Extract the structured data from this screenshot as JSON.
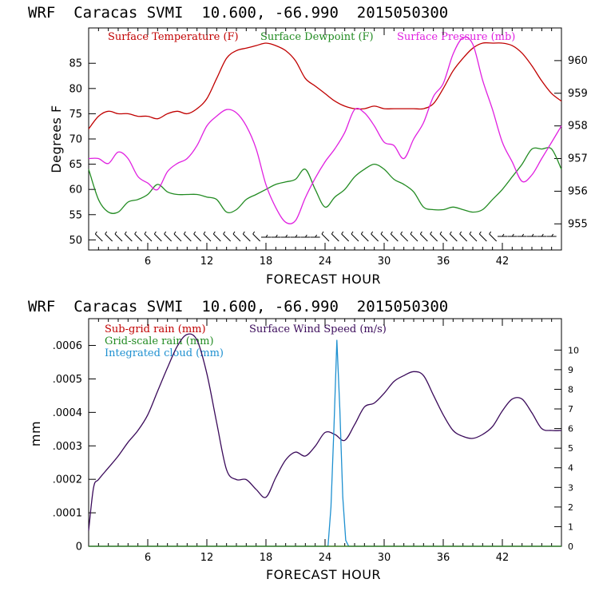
{
  "colors": {
    "temperature": "#c00000",
    "dewpoint": "#228b22",
    "pressure": "#e020e0",
    "subgrid_rain": "#c00000",
    "gridscale_rain": "#228b22",
    "cloud": "#1e90d0",
    "wind_speed": "#3a0a5a"
  },
  "chart_data": [
    {
      "type": "line",
      "header": "WRF  Caracas SVMI  10.600, -66.990  2015050300",
      "xlabel": "FORECAST HOUR",
      "ylabel": "Degrees F",
      "xlim": [
        0,
        48
      ],
      "x_ticks": [
        6,
        12,
        18,
        24,
        30,
        36,
        42
      ],
      "ylim_left": [
        48,
        92
      ],
      "y_ticks_left": [
        50,
        55,
        60,
        65,
        70,
        75,
        80,
        85
      ],
      "ylim_right": [
        954.2,
        961
      ],
      "y_ticks_right": [
        955,
        956,
        957,
        958,
        959,
        960
      ],
      "legend": [
        "Surface Temperature (F)",
        "Surface Dewpoint (F)",
        "Surface Pressure (mb)"
      ],
      "series": [
        {
          "name": "Surface Temperature (F)",
          "axis": "left",
          "x": [
            0,
            1,
            2,
            3,
            4,
            5,
            6,
            7,
            8,
            9,
            10,
            11,
            12,
            13,
            14,
            15,
            16,
            17,
            18,
            19,
            20,
            21,
            22,
            23,
            24,
            25,
            26,
            27,
            28,
            29,
            30,
            31,
            32,
            33,
            34,
            35,
            36,
            37,
            38,
            39,
            40,
            41,
            42,
            43,
            44,
            45,
            46,
            47,
            48
          ],
          "values": [
            72,
            74.5,
            75.5,
            75,
            75,
            74.5,
            74.5,
            74,
            75,
            75.5,
            75,
            76,
            78,
            82,
            86,
            87.5,
            88,
            88.5,
            89,
            88.5,
            87.5,
            85.5,
            82,
            80.5,
            79,
            77.5,
            76.5,
            76,
            76,
            76.5,
            76,
            76,
            76,
            76,
            76,
            77,
            80,
            83.5,
            86,
            88,
            89,
            89,
            89,
            88.5,
            87,
            84.5,
            81.5,
            79,
            77.5
          ]
        },
        {
          "name": "Surface Dewpoint (F)",
          "axis": "left",
          "x": [
            0,
            1,
            2,
            3,
            4,
            5,
            6,
            7,
            8,
            9,
            10,
            11,
            12,
            13,
            14,
            15,
            16,
            17,
            18,
            19,
            20,
            21,
            22,
            23,
            24,
            25,
            26,
            27,
            28,
            29,
            30,
            31,
            32,
            33,
            34,
            35,
            36,
            37,
            38,
            39,
            40,
            41,
            42,
            43,
            44,
            45,
            46,
            47,
            48
          ],
          "values": [
            64,
            58,
            55.5,
            55.5,
            57.5,
            58,
            59,
            61,
            59.5,
            59,
            59,
            59,
            58.5,
            58,
            55.5,
            56,
            58,
            59,
            60,
            61,
            61.5,
            62,
            64,
            60,
            56.5,
            58.5,
            60,
            62.5,
            64,
            65,
            64,
            62,
            61,
            59.5,
            56.5,
            56,
            56,
            56.5,
            56,
            55.5,
            56,
            58,
            60,
            62.5,
            65,
            68,
            68,
            68,
            64
          ]
        },
        {
          "name": "Surface Pressure (mb)",
          "axis": "right",
          "x": [
            0,
            1,
            2,
            3,
            4,
            5,
            6,
            7,
            8,
            9,
            10,
            11,
            12,
            13,
            14,
            15,
            16,
            17,
            18,
            19,
            20,
            21,
            22,
            23,
            24,
            25,
            26,
            27,
            28,
            29,
            30,
            31,
            32,
            33,
            34,
            35,
            36,
            37,
            38,
            39,
            40,
            41,
            42,
            43,
            44,
            45,
            46,
            47,
            48
          ],
          "values": [
            957,
            957,
            956.85,
            957.2,
            957,
            956.45,
            956.25,
            956.05,
            956.6,
            956.85,
            957,
            957.4,
            958,
            958.3,
            958.5,
            958.4,
            958,
            957.3,
            956.2,
            955.5,
            955.05,
            955.1,
            955.8,
            956.4,
            956.9,
            957.3,
            957.8,
            958.5,
            958.4,
            958,
            957.5,
            957.4,
            957,
            957.6,
            958.1,
            958.9,
            959.3,
            960.2,
            960.7,
            960.5,
            959.4,
            958.5,
            957.5,
            956.9,
            956.3,
            956.5,
            957,
            957.5,
            958
          ]
        },
        {
          "name": "Wind barbs",
          "axis": "left",
          "style": "barbs"
        }
      ]
    },
    {
      "type": "line",
      "header": "WRF  Caracas SVMI  10.600, -66.990  2015050300",
      "xlabel": "FORECAST HOUR",
      "ylabel": "mm",
      "xlim": [
        0,
        48
      ],
      "x_ticks": [
        6,
        12,
        18,
        24,
        30,
        36,
        42
      ],
      "ylim_left": [
        0,
        0.00068
      ],
      "y_ticks_left": [
        0,
        0.0001,
        0.0002,
        0.0003,
        0.0004,
        0.0005,
        0.0006
      ],
      "y_tick_labels_left": [
        "0",
        ".0001",
        ".0002",
        ".0003",
        ".0004",
        ".0005",
        ".0006"
      ],
      "ylim_right": [
        0,
        11.6
      ],
      "y_ticks_right": [
        0,
        1,
        2,
        3,
        4,
        5,
        6,
        7,
        8,
        9,
        10
      ],
      "legend": [
        "Sub-grid rain (mm)",
        "Grid-scale rain (mm)",
        "Integrated cloud (mm)",
        "Surface Wind Speed (m/s)"
      ],
      "series": [
        {
          "name": "Surface Wind Speed (m/s)",
          "axis": "right",
          "x": [
            0,
            0.5,
            1,
            2,
            3,
            4,
            5,
            6,
            7,
            8,
            9,
            10,
            11,
            12,
            13,
            14,
            15,
            16,
            17,
            18,
            19,
            20,
            21,
            22,
            23,
            24,
            25,
            26,
            27,
            28,
            29,
            30,
            31,
            32,
            33,
            34,
            35,
            36,
            37,
            38,
            39,
            40,
            41,
            42,
            43,
            44,
            45,
            46,
            47,
            48
          ],
          "values": [
            0.8,
            3,
            3.4,
            4,
            4.6,
            5.3,
            5.9,
            6.7,
            7.9,
            9.1,
            10.2,
            10.8,
            10.5,
            8.8,
            6.3,
            3.9,
            3.4,
            3.4,
            2.9,
            2.5,
            3.5,
            4.4,
            4.8,
            4.6,
            5.1,
            5.8,
            5.7,
            5.4,
            6.2,
            7.1,
            7.3,
            7.8,
            8.4,
            8.7,
            8.9,
            8.7,
            7.7,
            6.7,
            5.9,
            5.6,
            5.5,
            5.7,
            6.1,
            6.9,
            7.5,
            7.5,
            6.8,
            6.0,
            5.9,
            5.9
          ]
        },
        {
          "name": "Integrated cloud (mm)",
          "axis": "right",
          "x": [
            0,
            24.3,
            24.6,
            24.9,
            25.2,
            25.5,
            25.8,
            26.1,
            26.4,
            48
          ],
          "values": [
            0,
            0,
            2,
            6,
            10.5,
            7,
            2.5,
            0.3,
            0,
            0
          ]
        },
        {
          "name": "Sub-grid rain (mm)",
          "axis": "left",
          "x": [
            0,
            48
          ],
          "values": [
            0,
            0
          ]
        },
        {
          "name": "Grid-scale rain (mm)",
          "axis": "left",
          "x": [
            0,
            48
          ],
          "values": [
            0,
            0
          ]
        }
      ]
    }
  ]
}
